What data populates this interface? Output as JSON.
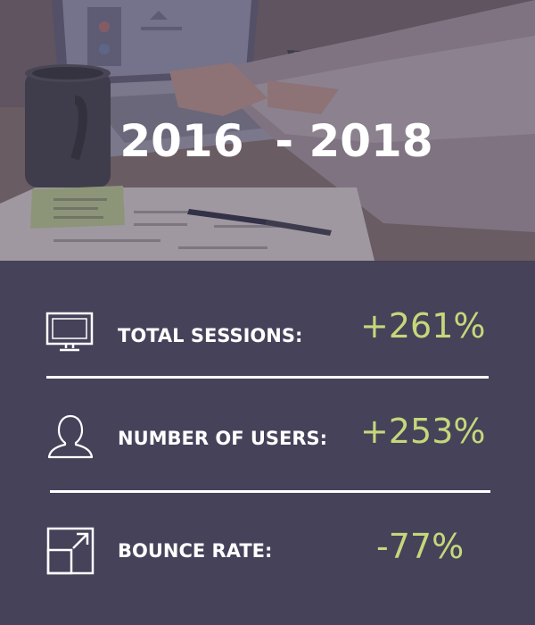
{
  "hero": {
    "title": "2016  - 2018"
  },
  "stats": {
    "items": [
      {
        "icon": "monitor-icon",
        "label": "TOTAL SESSIONS:",
        "value": "+261%"
      },
      {
        "icon": "user-icon",
        "label": "NUMBER OF USERS:",
        "value": "+253%"
      },
      {
        "icon": "expand-arrow-icon",
        "label": "BOUNCE RATE:",
        "value": "-77%"
      }
    ]
  },
  "colors": {
    "panel_background": "#45425a",
    "value_accent": "#c6d77a",
    "label_text": "#ffffff"
  }
}
